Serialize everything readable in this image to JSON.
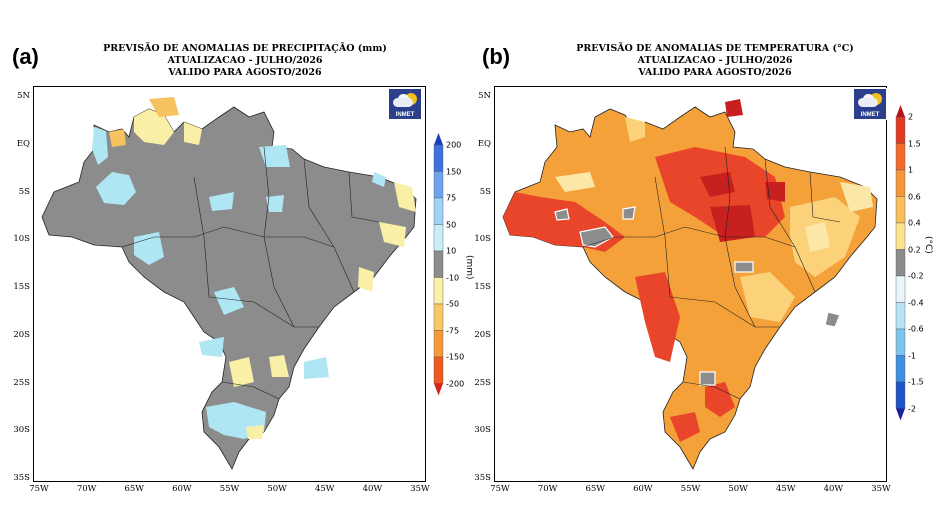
{
  "panels": [
    {
      "letter": "(a)",
      "title": [
        "PREVISÃO DE ANOMALIAS DE PRECIPITAÇÃO (mm)",
        "ATUALIZACAO - JULHO/2026",
        "VALIDO PARA AGOSTO/2026"
      ],
      "logo_text": "INMET",
      "colorbar_unit": "(mm)",
      "colorbar_labels": [
        "200",
        "150",
        "75",
        "50",
        "10",
        "-10",
        "-50",
        "-75",
        "-150",
        "-200"
      ],
      "colorbar_colors": [
        "#1b3fb8",
        "#3c71de",
        "#6ea3ee",
        "#9fd2f4",
        "#c9eef8",
        "#8c8c8c",
        "#fbf0a8",
        "#f9c867",
        "#f59a3a",
        "#ee5a22",
        "#d4251c"
      ]
    },
    {
      "letter": "(b)",
      "title": [
        "PREVISÃO DE ANOMALIAS DE TEMPERATURA (°C)",
        "ATUALIZACAO - JULHO/2026",
        "VALIDO PARA AGOSTO/2026"
      ],
      "logo_text": "INMET",
      "colorbar_unit": "(°C)",
      "colorbar_labels": [
        "2",
        "1.5",
        "1",
        "0.6",
        "0.4",
        "0.2",
        "-0.2",
        "-0.4",
        "-0.6",
        "-1",
        "-1.5",
        "-2"
      ],
      "colorbar_colors": [
        "#b8121b",
        "#e23a22",
        "#f36a2c",
        "#f7953a",
        "#f9bf5a",
        "#fbe38e",
        "#8c8c8c",
        "#e9f7fb",
        "#b9e3f5",
        "#7fc4ee",
        "#3f8fe0",
        "#1f55c8",
        "#1a1f9e"
      ]
    }
  ],
  "map": {
    "lat_ticks": [
      "5N",
      "EQ",
      "5S",
      "10S",
      "15S",
      "20S",
      "25S",
      "30S",
      "35S"
    ],
    "lon_ticks": [
      "75W",
      "70W",
      "65W",
      "60W",
      "55W",
      "50W",
      "45W",
      "40W",
      "35W"
    ]
  },
  "colors": {
    "neutral_gray": "#8c8c8c",
    "temp_base": "#f5a13a",
    "temp_hot": "#e8452a",
    "temp_hotter": "#c8201e",
    "temp_light": "#fbd27a",
    "temp_pale": "#fbe8a8",
    "prec_blue": "#aee6f3",
    "prec_yellow": "#faefa6",
    "prec_orange": "#f7c260"
  }
}
